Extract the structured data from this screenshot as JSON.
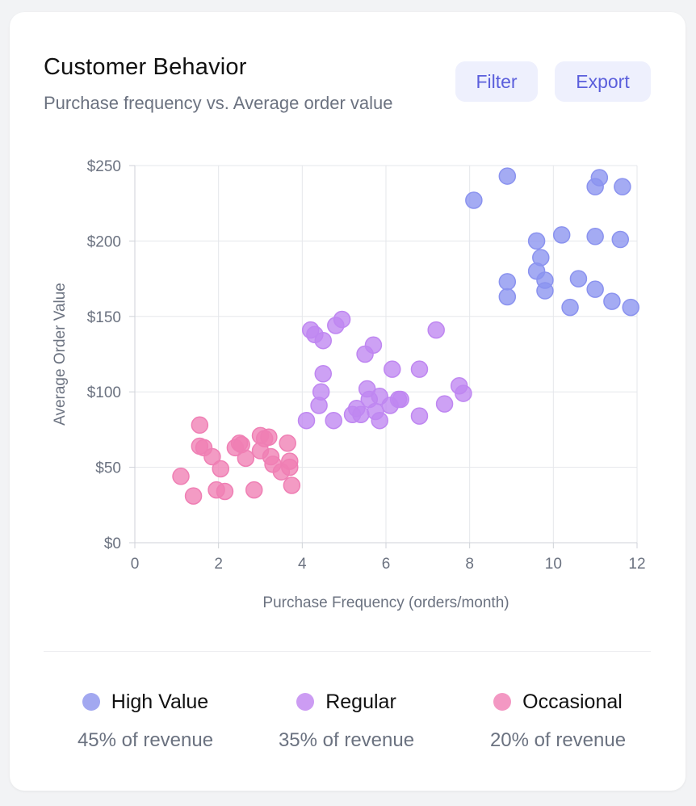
{
  "header": {
    "title": "Customer Behavior",
    "subtitle": "Purchase frequency vs. Average order value",
    "filter_label": "Filter",
    "export_label": "Export"
  },
  "chart_data": {
    "type": "scatter",
    "xlabel": "Purchase Frequency (orders/month)",
    "ylabel": "Average Order Value",
    "xlim": [
      0,
      12
    ],
    "ylim": [
      0,
      250
    ],
    "x_ticks": [
      0,
      2,
      4,
      6,
      8,
      10,
      12
    ],
    "y_ticks": [
      0,
      50,
      100,
      150,
      200,
      250
    ],
    "y_tick_prefix": "$",
    "grid": true,
    "series": [
      {
        "name": "High Value",
        "color": "#8b93ef",
        "points": [
          [
            8.1,
            227
          ],
          [
            8.9,
            243
          ],
          [
            8.9,
            173
          ],
          [
            8.9,
            163
          ],
          [
            9.6,
            200
          ],
          [
            9.7,
            189
          ],
          [
            9.6,
            180
          ],
          [
            9.8,
            174
          ],
          [
            9.8,
            167
          ],
          [
            10.2,
            204
          ],
          [
            10.4,
            156
          ],
          [
            10.6,
            175
          ],
          [
            11.0,
            203
          ],
          [
            11.0,
            168
          ],
          [
            11.0,
            236
          ],
          [
            11.1,
            242
          ],
          [
            11.4,
            160
          ],
          [
            11.6,
            201
          ],
          [
            11.65,
            236
          ],
          [
            11.85,
            156
          ]
        ]
      },
      {
        "name": "Regular",
        "color": "#bf87f1",
        "points": [
          [
            4.1,
            81
          ],
          [
            4.2,
            141
          ],
          [
            4.3,
            138
          ],
          [
            4.4,
            91
          ],
          [
            4.45,
            100
          ],
          [
            4.5,
            134
          ],
          [
            4.5,
            112
          ],
          [
            4.75,
            81
          ],
          [
            4.8,
            144
          ],
          [
            4.95,
            148
          ],
          [
            5.2,
            85
          ],
          [
            5.3,
            89
          ],
          [
            5.4,
            85
          ],
          [
            5.5,
            125
          ],
          [
            5.55,
            102
          ],
          [
            5.6,
            95
          ],
          [
            5.7,
            131
          ],
          [
            5.75,
            87
          ],
          [
            5.85,
            97
          ],
          [
            5.85,
            81
          ],
          [
            6.1,
            91
          ],
          [
            6.15,
            115
          ],
          [
            6.3,
            95
          ],
          [
            6.35,
            95
          ],
          [
            6.8,
            115
          ],
          [
            6.8,
            84
          ],
          [
            7.2,
            141
          ],
          [
            7.4,
            92
          ],
          [
            7.75,
            104
          ],
          [
            7.85,
            99
          ]
        ]
      },
      {
        "name": "Occasional",
        "color": "#ef7fb4",
        "points": [
          [
            1.1,
            44
          ],
          [
            1.4,
            31
          ],
          [
            1.55,
            78
          ],
          [
            1.55,
            64
          ],
          [
            1.65,
            63
          ],
          [
            1.85,
            57
          ],
          [
            1.95,
            35
          ],
          [
            2.05,
            49
          ],
          [
            2.15,
            34
          ],
          [
            2.4,
            63
          ],
          [
            2.5,
            66
          ],
          [
            2.55,
            65
          ],
          [
            2.65,
            56
          ],
          [
            2.85,
            35
          ],
          [
            3.0,
            71
          ],
          [
            3.0,
            61
          ],
          [
            3.1,
            69
          ],
          [
            3.2,
            70
          ],
          [
            3.25,
            57
          ],
          [
            3.3,
            52
          ],
          [
            3.5,
            47
          ],
          [
            3.65,
            66
          ],
          [
            3.7,
            54
          ],
          [
            3.7,
            50
          ],
          [
            3.75,
            38
          ]
        ]
      }
    ]
  },
  "legend": [
    {
      "name": "High Value",
      "share": "45% of revenue",
      "color": "#8b93ef"
    },
    {
      "name": "Regular",
      "share": "35% of revenue",
      "color": "#bf87f1"
    },
    {
      "name": "Occasional",
      "share": "20% of revenue",
      "color": "#ef7fb4"
    }
  ]
}
